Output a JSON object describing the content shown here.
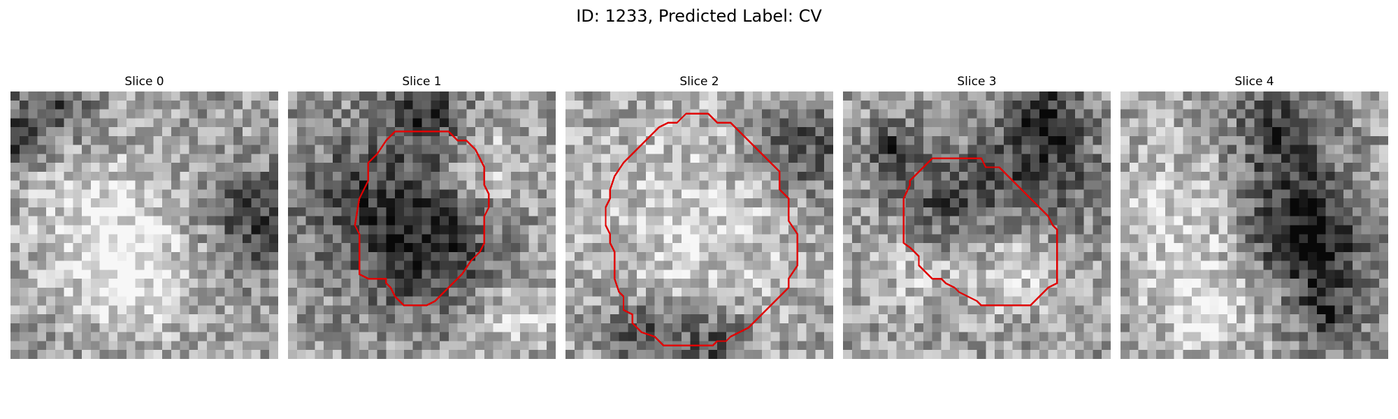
{
  "figure": {
    "title": "ID: 1233, Predicted Label: CV"
  },
  "panels": [
    {
      "title": "Slice 0",
      "has_contour": false,
      "seed": 11,
      "dark_blobs": [
        [
          1,
          4,
          3
        ],
        [
          5,
          0,
          2
        ],
        [
          14,
          27,
          4
        ]
      ],
      "light_blobs": [
        [
          14,
          9,
          6
        ],
        [
          20,
          14,
          5
        ]
      ]
    },
    {
      "title": "Slice 1",
      "has_contour": true,
      "seed": 23,
      "dark_blobs": [
        [
          12,
          9,
          6
        ],
        [
          18,
          16,
          5
        ],
        [
          2,
          15,
          3
        ]
      ],
      "light_blobs": [
        [
          8,
          22,
          3
        ],
        [
          25,
          25,
          3
        ]
      ]
    },
    {
      "title": "Slice 2",
      "has_contour": true,
      "seed": 37,
      "dark_blobs": [
        [
          6,
          26,
          4
        ],
        [
          27,
          8,
          3
        ],
        [
          28,
          16,
          3
        ]
      ],
      "light_blobs": [
        [
          14,
          14,
          9
        ]
      ]
    },
    {
      "title": "Slice 3",
      "has_contour": true,
      "seed": 41,
      "dark_blobs": [
        [
          9,
          21,
          5
        ],
        [
          13,
          10,
          4
        ],
        [
          2,
          22,
          3
        ],
        [
          6,
          5,
          2
        ]
      ],
      "light_blobs": [
        [
          19,
          19,
          4
        ],
        [
          18,
          8,
          4
        ]
      ]
    },
    {
      "title": "Slice 4",
      "has_contour": false,
      "seed": 53,
      "dark_blobs": [
        [
          14,
          18,
          5
        ],
        [
          16,
          21,
          4
        ],
        [
          4,
          17,
          4
        ],
        [
          24,
          23,
          3
        ]
      ],
      "light_blobs": [
        [
          14,
          8,
          7
        ],
        [
          24,
          9,
          4
        ]
      ]
    }
  ],
  "style": {
    "contour_color": "#e00000",
    "colormap": "grayscale"
  }
}
